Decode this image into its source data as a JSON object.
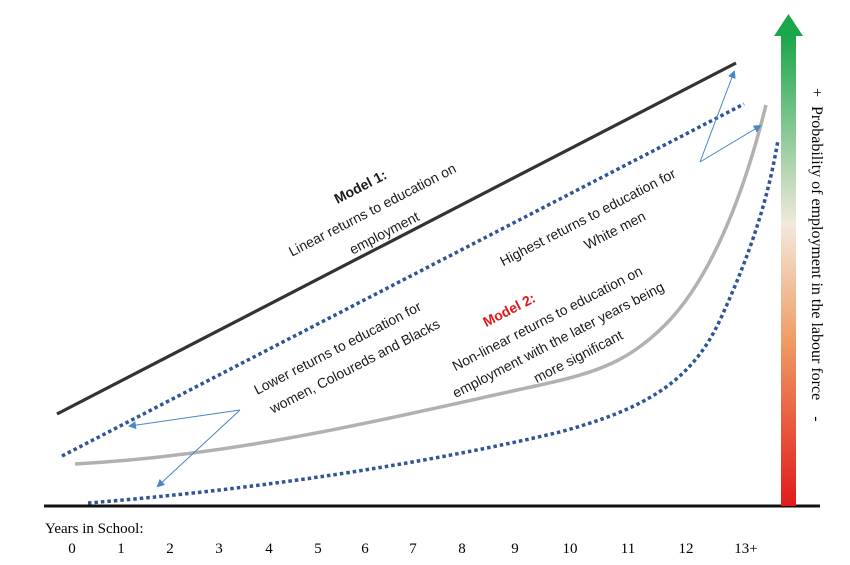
{
  "model1": {
    "title": "Model 1:",
    "line1": "Linear returns to education on",
    "line2": "employment"
  },
  "model2": {
    "title": "Model 2:",
    "line1": "Non-linear returns to education on",
    "line2": "employment with the later years being",
    "line3": "more significant"
  },
  "highest": {
    "line1": "Highest returns to education for",
    "line2": "White men"
  },
  "lower": {
    "line1": "Lower returns to education for",
    "line2": "women, Coloureds and Blacks"
  },
  "x_axis": {
    "title": "Years in School:",
    "ticks": [
      "0",
      "1",
      "2",
      "3",
      "4",
      "5",
      "6",
      "7",
      "8",
      "9",
      "10",
      "11",
      "12",
      "13+"
    ]
  },
  "y_axis": {
    "plus": "+",
    "label": "Probability of employment in the labour force",
    "minus": "-"
  },
  "colors": {
    "solid_line": "#333333",
    "curve": "#b3b0b0",
    "dotted": "#2f5597",
    "arrow": "#4a86c8",
    "gradient_top": "#1aa64a",
    "gradient_mid": "#f2e6d6",
    "gradient_bottom": "#e01b1b",
    "model2_title": "#e0191b"
  }
}
